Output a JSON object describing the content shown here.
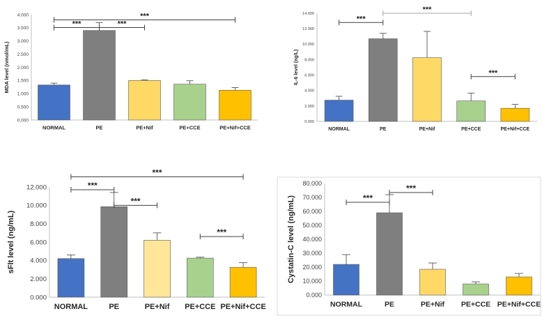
{
  "figure": {
    "colors": {
      "normal": "#4472c4",
      "pe": "#7f7f7f",
      "pe_nif": "#ffd966",
      "pe_nif_light": "#ffe699",
      "pe_cce": "#a9d18e",
      "pe_nif_cce": "#ffc000",
      "axis": "#bfbfbf",
      "bracket": "#404040",
      "bracket_light": "#a6a6a6",
      "text": "#262626"
    }
  },
  "chart_data": [
    {
      "id": "mda",
      "type": "bar",
      "title": "",
      "ylabel": "MDA level (nmol/mL)",
      "categories": [
        "NORMAL",
        "PE",
        "PE+Nif",
        "PE+CCE",
        "PE+Nif+CCE"
      ],
      "values": [
        1.33,
        3.4,
        1.5,
        1.36,
        1.13
      ],
      "errors": [
        0.07,
        0.3,
        0.02,
        0.13,
        0.1
      ],
      "ylim": [
        0,
        4
      ],
      "ticks": [
        "0.000",
        "0.500",
        "1.000",
        "1.500",
        "2.000",
        "2.500",
        "3.000",
        "3.500",
        "4.000"
      ],
      "colors": [
        "#4472c4",
        "#7f7f7f",
        "#ffd966",
        "#a9d18e",
        "#ffc000"
      ],
      "significance": [
        {
          "from": 0,
          "to": 1,
          "level": 3.51,
          "label": "***"
        },
        {
          "from": 1,
          "to": 2,
          "level": 3.51,
          "label": "***"
        },
        {
          "from": 0,
          "to": 4,
          "level": 3.8,
          "label": "***"
        }
      ]
    },
    {
      "id": "il6",
      "type": "bar",
      "title": "",
      "ylabel": "IL-6 level (ng/L)",
      "categories": [
        "NORMAL",
        "PE",
        "PE+Nif",
        "PE+CCE",
        "PE+Nif+CCE"
      ],
      "values": [
        2750,
        10700,
        8250,
        2650,
        1700
      ],
      "errors": [
        500,
        700,
        3400,
        1000,
        500
      ],
      "ylim": [
        0,
        14000
      ],
      "ticks": [
        "0.000",
        "2.000",
        "4.000",
        "6.000",
        "8.000",
        "10.000",
        "12.000",
        "14.000"
      ],
      "colors": [
        "#4472c4",
        "#7f7f7f",
        "#ffd966",
        "#a9d18e",
        "#ffc000"
      ],
      "significance": [
        {
          "from": 0,
          "to": 1,
          "level": 12800,
          "label": "***",
          "light": false
        },
        {
          "from": 1,
          "to": 3,
          "level": 14000,
          "label": "***",
          "light": true
        },
        {
          "from": 3,
          "to": 4,
          "level": 5800,
          "label": "***",
          "light": false
        }
      ]
    },
    {
      "id": "sflt",
      "type": "bar",
      "title": "",
      "ylabel": "sFlt level  (ng/mL)",
      "categories": [
        "NORMAL",
        "PE",
        "PE+Nif",
        "PE+CCE",
        "PE+Nif+CCE"
      ],
      "values": [
        4200,
        9850,
        6200,
        4250,
        3250
      ],
      "errors": [
        400,
        1550,
        800,
        100,
        500
      ],
      "ylim": [
        0,
        12000
      ],
      "ticks": [
        "0.000",
        "2.000",
        "4.000",
        "6.000",
        "8.000",
        "10.000",
        "12.000"
      ],
      "colors": [
        "#4472c4",
        "#7f7f7f",
        "#ffe699",
        "#a9d18e",
        "#ffc000"
      ],
      "significance": [
        {
          "from": 0,
          "to": 1,
          "level": 11700,
          "label": "***"
        },
        {
          "from": 1,
          "to": 2,
          "level": 10000,
          "label": "***"
        },
        {
          "from": 3,
          "to": 4,
          "level": 6600,
          "label": "***",
          "skipRight": false
        },
        {
          "from": 0,
          "to": 4,
          "level": 13100,
          "label": "***"
        }
      ]
    },
    {
      "id": "cystatin",
      "type": "bar",
      "title": "",
      "ylabel": "Cystatin-C level  (ng/mL)",
      "categories": [
        "NORMAL",
        "PE",
        "PE+Nif",
        "PE+CCE",
        "PE+Nif+CCE"
      ],
      "values": [
        22000,
        59000,
        18500,
        8000,
        13000
      ],
      "errors": [
        7000,
        13000,
        4500,
        1500,
        2500
      ],
      "ylim": [
        0,
        80000
      ],
      "ticks": [
        "0.000",
        "10.000",
        "20.000",
        "30.000",
        "40.000",
        "50.000",
        "60.000",
        "70.000",
        "80.000"
      ],
      "colors": [
        "#4472c4",
        "#7f7f7f",
        "#ffd966",
        "#a9d18e",
        "#ffc000"
      ],
      "significance": [
        {
          "from": 0,
          "to": 1,
          "level": 66500,
          "label": "***"
        },
        {
          "from": 1,
          "to": 2,
          "level": 73500,
          "label": "***"
        }
      ]
    }
  ]
}
